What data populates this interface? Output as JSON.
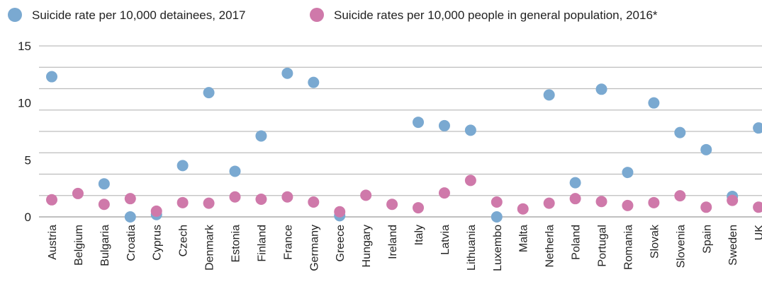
{
  "chart_data": {
    "type": "scatter",
    "title": "",
    "xlabel": "",
    "ylabel": "",
    "ylim": [
      0,
      15
    ],
    "yticks": [
      0,
      5,
      10,
      15
    ],
    "grid": true,
    "legend_position": "top",
    "categories": [
      "Austria",
      "Belgium",
      "Bulgaria",
      "Croatia",
      "Cyprus",
      "Czech",
      "Denmark",
      "Estonia",
      "Finland",
      "France",
      "Germany",
      "Greece",
      "Hungary",
      "Ireland",
      "Italy",
      "Latvia",
      "Lithuania",
      "Luxembo",
      "Malta",
      "Netherla",
      "Poland",
      "Portugal",
      "Romania",
      "Slovak",
      "Slovenia",
      "Spain",
      "Sweden",
      "UK"
    ],
    "series": [
      {
        "name": "Suicide rate per 10,000 detainees, 2017",
        "color": "#7aa9d1",
        "values": [
          12.3,
          null,
          2.9,
          0.0,
          0.2,
          4.5,
          10.9,
          4.0,
          7.1,
          12.6,
          11.8,
          0.1,
          null,
          null,
          8.3,
          8.0,
          7.6,
          0.0,
          null,
          10.7,
          3.0,
          11.2,
          3.9,
          10.0,
          7.4,
          5.9,
          1.8,
          7.8
        ]
      },
      {
        "name": "Suicide rates per 10,000 people in general population, 2016*",
        "color": "#cf79aa",
        "values": [
          1.5,
          2.05,
          1.1,
          1.6,
          0.5,
          1.25,
          1.2,
          1.75,
          1.55,
          1.75,
          1.3,
          0.45,
          1.9,
          1.1,
          0.8,
          2.1,
          3.2,
          1.3,
          0.7,
          1.2,
          1.6,
          1.35,
          1.0,
          1.25,
          1.85,
          0.85,
          1.45,
          0.85
        ]
      }
    ]
  }
}
